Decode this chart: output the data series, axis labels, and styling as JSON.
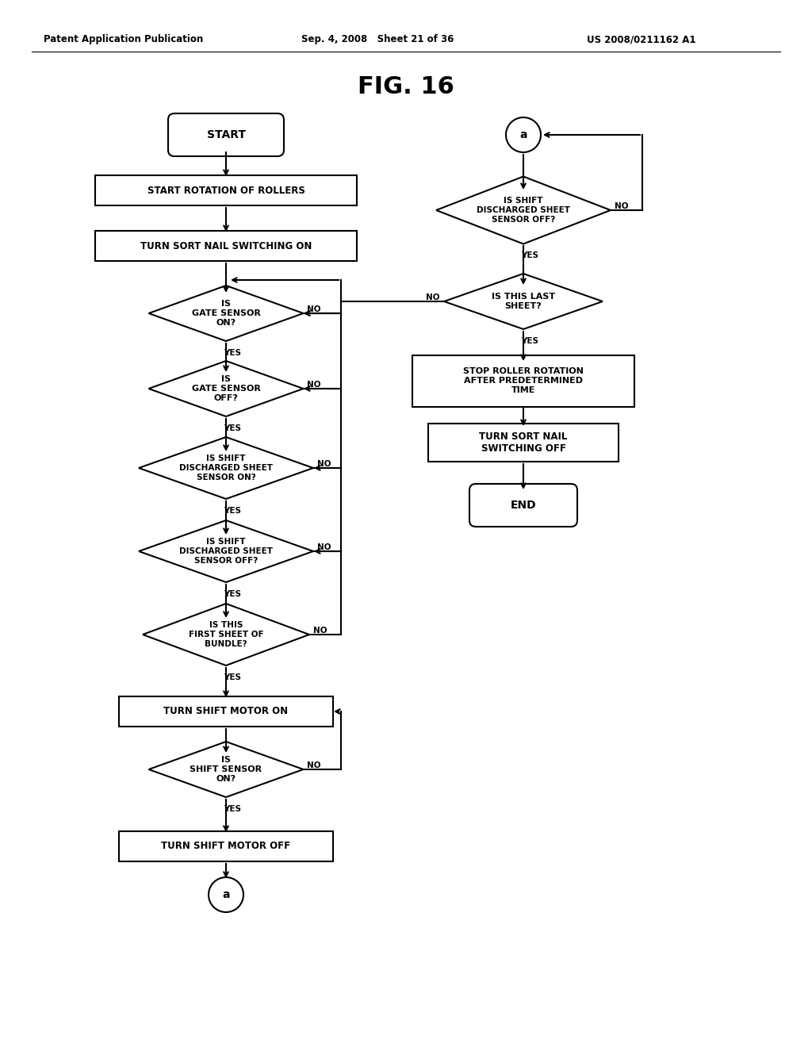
{
  "title": "FIG. 16",
  "header_left": "Patent Application Publication",
  "header_mid": "Sep. 4, 2008   Sheet 21 of 36",
  "header_right": "US 2008/0211162 A1",
  "bg_color": "#ffffff",
  "line_color": "#000000",
  "text_color": "#000000",
  "lw": 1.5
}
